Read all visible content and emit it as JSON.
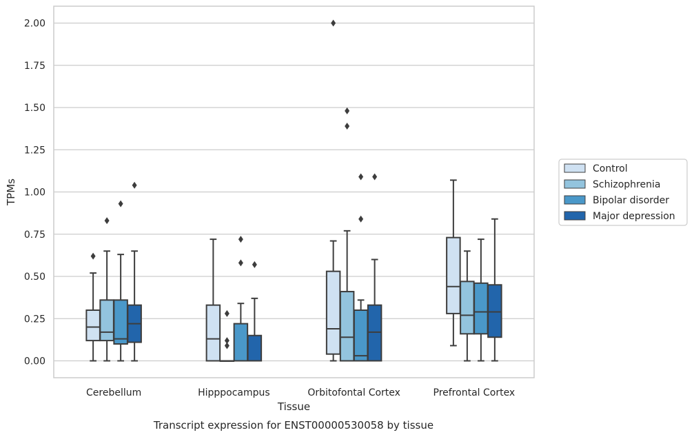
{
  "caption": "Transcript expression for ENST00000530058 by tissue",
  "chart_data": {
    "type": "box",
    "xlabel": "Tissue",
    "ylabel": "TPMs",
    "ylim": [
      -0.1,
      2.1
    ],
    "yticks": [
      0.0,
      0.25,
      0.5,
      0.75,
      1.0,
      1.25,
      1.5,
      1.75,
      2.0
    ],
    "ytick_labels": [
      "0.00",
      "0.25",
      "0.50",
      "0.75",
      "1.00",
      "1.25",
      "1.50",
      "1.75",
      "2.00"
    ],
    "grid": "horizontal",
    "legend_position": "right-center",
    "categories": [
      "Cerebellum",
      "Hipppocampus",
      "Orbitofontal Cortex",
      "Prefrontal Cortex"
    ],
    "series": [
      {
        "name": "Control",
        "color": "#cfe1f2",
        "boxes": [
          {
            "whislo": 0.0,
            "q1": 0.12,
            "med": 0.2,
            "q3": 0.3,
            "whishi": 0.52,
            "fliers": [
              0.62
            ]
          },
          {
            "whislo": 0.0,
            "q1": 0.0,
            "med": 0.13,
            "q3": 0.33,
            "whishi": 0.72,
            "fliers": []
          },
          {
            "whislo": 0.0,
            "q1": 0.04,
            "med": 0.19,
            "q3": 0.53,
            "whishi": 0.71,
            "fliers": [
              2.0
            ]
          },
          {
            "whislo": 0.09,
            "q1": 0.28,
            "med": 0.44,
            "q3": 0.73,
            "whishi": 1.07,
            "fliers": []
          }
        ]
      },
      {
        "name": "Schizophrenia",
        "color": "#93c4de",
        "boxes": [
          {
            "whislo": 0.0,
            "q1": 0.12,
            "med": 0.17,
            "q3": 0.36,
            "whishi": 0.65,
            "fliers": [
              0.83
            ]
          },
          {
            "whislo": 0.0,
            "q1": 0.0,
            "med": 0.0,
            "q3": 0.0,
            "whishi": 0.0,
            "fliers": [
              0.09,
              0.12,
              0.28
            ]
          },
          {
            "whislo": 0.0,
            "q1": 0.0,
            "med": 0.14,
            "q3": 0.41,
            "whishi": 0.77,
            "fliers": [
              1.39,
              1.48
            ]
          },
          {
            "whislo": 0.0,
            "q1": 0.16,
            "med": 0.27,
            "q3": 0.47,
            "whishi": 0.65,
            "fliers": []
          }
        ]
      },
      {
        "name": "Bipolar disorder",
        "color": "#4a98c9",
        "boxes": [
          {
            "whislo": 0.0,
            "q1": 0.1,
            "med": 0.13,
            "q3": 0.36,
            "whishi": 0.63,
            "fliers": [
              0.93
            ]
          },
          {
            "whislo": 0.0,
            "q1": 0.0,
            "med": 0.0,
            "q3": 0.22,
            "whishi": 0.34,
            "fliers": [
              0.58,
              0.72
            ]
          },
          {
            "whislo": 0.0,
            "q1": 0.0,
            "med": 0.03,
            "q3": 0.3,
            "whishi": 0.36,
            "fliers": [
              0.84,
              1.09
            ]
          },
          {
            "whislo": 0.0,
            "q1": 0.16,
            "med": 0.29,
            "q3": 0.46,
            "whishi": 0.72,
            "fliers": []
          }
        ]
      },
      {
        "name": "Major depression",
        "color": "#2265ab",
        "boxes": [
          {
            "whislo": 0.0,
            "q1": 0.11,
            "med": 0.22,
            "q3": 0.33,
            "whishi": 0.65,
            "fliers": [
              1.04
            ]
          },
          {
            "whislo": 0.0,
            "q1": 0.0,
            "med": 0.0,
            "q3": 0.15,
            "whishi": 0.37,
            "fliers": [
              0.57
            ]
          },
          {
            "whislo": 0.0,
            "q1": 0.0,
            "med": 0.17,
            "q3": 0.33,
            "whishi": 0.6,
            "fliers": [
              1.09
            ]
          },
          {
            "whislo": 0.0,
            "q1": 0.14,
            "med": 0.29,
            "q3": 0.45,
            "whishi": 0.84,
            "fliers": []
          }
        ]
      }
    ]
  }
}
